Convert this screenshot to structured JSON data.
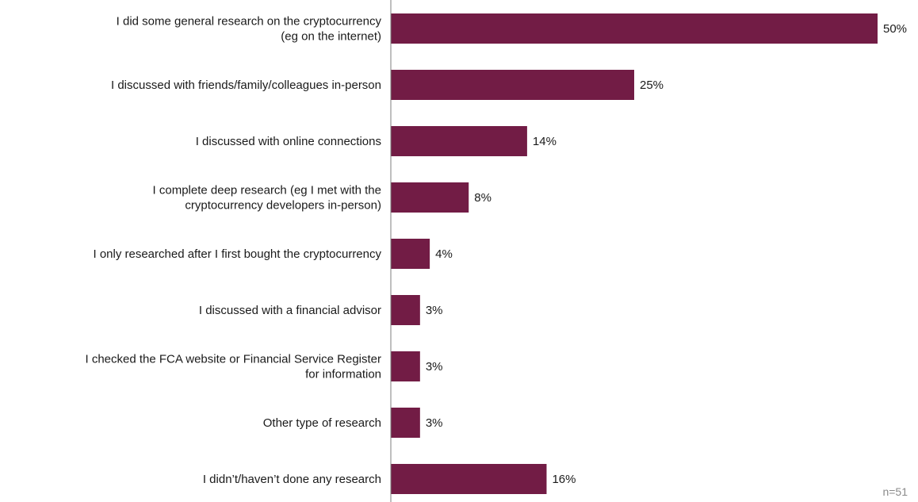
{
  "chart_data": {
    "type": "bar",
    "orientation": "horizontal",
    "categories": [
      [
        "I did some general research on the cryptocurrency",
        "(eg on the internet)"
      ],
      [
        "I discussed with friends/family/colleagues in-person"
      ],
      [
        "I discussed with online connections"
      ],
      [
        "I complete deep research (eg I met with the",
        "cryptocurrency developers in-person)"
      ],
      [
        "I only researched after I first bought the cryptocurrency"
      ],
      [
        "I discussed with a financial advisor"
      ],
      [
        "I checked the FCA website or Financial Service Register",
        "for information"
      ],
      [
        "Other type of research"
      ],
      [
        "I didn’t/haven’t done any research"
      ]
    ],
    "values": [
      50,
      25,
      14,
      8,
      4,
      3,
      3,
      3,
      16
    ],
    "value_labels": [
      "50%",
      "25%",
      "14%",
      "8%",
      "4%",
      "3%",
      "3%",
      "3%",
      "16%"
    ],
    "unit": "%",
    "xlim": [
      0,
      50
    ],
    "grid": false,
    "bar_color": "#721c45",
    "axis_color": "#7f7f7f",
    "note": "n=51"
  }
}
